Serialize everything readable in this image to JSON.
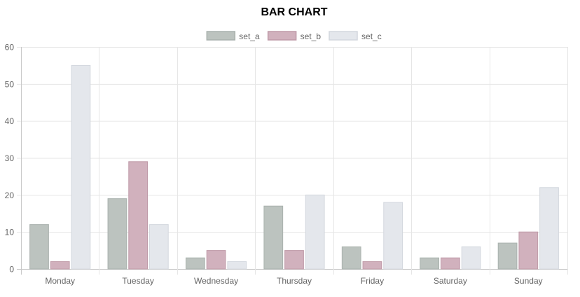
{
  "chart_data": {
    "type": "bar",
    "title": "BAR CHART",
    "categories": [
      "Monday",
      "Tuesday",
      "Wednesday",
      "Thursday",
      "Friday",
      "Saturday",
      "Sunday"
    ],
    "series": [
      {
        "name": "set_a",
        "values": [
          12,
          19,
          3,
          17,
          6,
          3,
          7
        ],
        "color": "#bcc3bf",
        "border": "#a9b1ad"
      },
      {
        "name": "set_b",
        "values": [
          2,
          29,
          5,
          5,
          2,
          3,
          10
        ],
        "color": "#d1b1bd",
        "border": "#bf9aa8"
      },
      {
        "name": "set_c",
        "values": [
          55,
          12,
          2,
          20,
          18,
          6,
          22
        ],
        "color": "#e4e7ec",
        "border": "#d3d7de"
      }
    ],
    "ylim": [
      0,
      60
    ],
    "yticks": [
      0,
      10,
      20,
      30,
      40,
      50,
      60
    ],
    "grid": true,
    "legend_position": "top-center"
  }
}
